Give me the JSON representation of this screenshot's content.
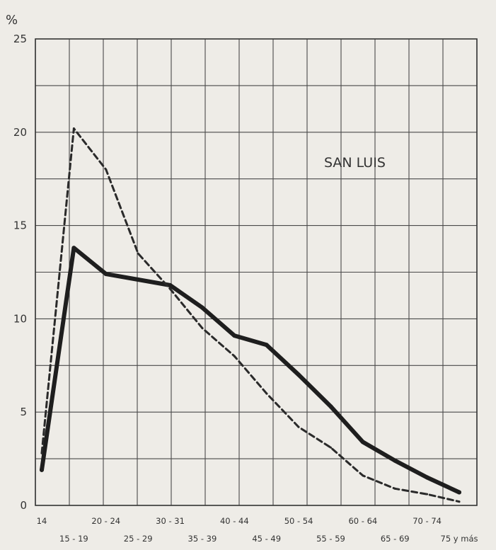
{
  "chart_data": {
    "type": "line",
    "y_unit": "%",
    "ylim": [
      0,
      25
    ],
    "y_ticks": [
      "0",
      "5",
      "10",
      "15",
      "20",
      "25"
    ],
    "grid": true,
    "annotation": "SAN LUIS",
    "x_tick_labels": [
      "14",
      "15 - 19",
      "20 - 24",
      "25 - 29",
      "30 - 31",
      "35 - 39",
      "40 - 44",
      "45 - 49",
      "50 - 54",
      "55 - 59",
      "60 - 64",
      "65 - 69",
      "70 - 74",
      "75 y más"
    ],
    "series": [
      {
        "style": "solid",
        "color": "#1e1e1e",
        "values": [
          1.9,
          13.8,
          12.4,
          12.1,
          11.8,
          10.6,
          9.1,
          8.6,
          7.0,
          5.3,
          3.4,
          2.4,
          1.5,
          0.7
        ]
      },
      {
        "style": "dashed",
        "color": "#2a2a2a",
        "values": [
          2.8,
          20.2,
          18.0,
          13.5,
          11.6,
          9.5,
          8.0,
          6.0,
          4.2,
          3.1,
          1.6,
          0.9,
          0.6,
          0.2
        ]
      }
    ]
  }
}
